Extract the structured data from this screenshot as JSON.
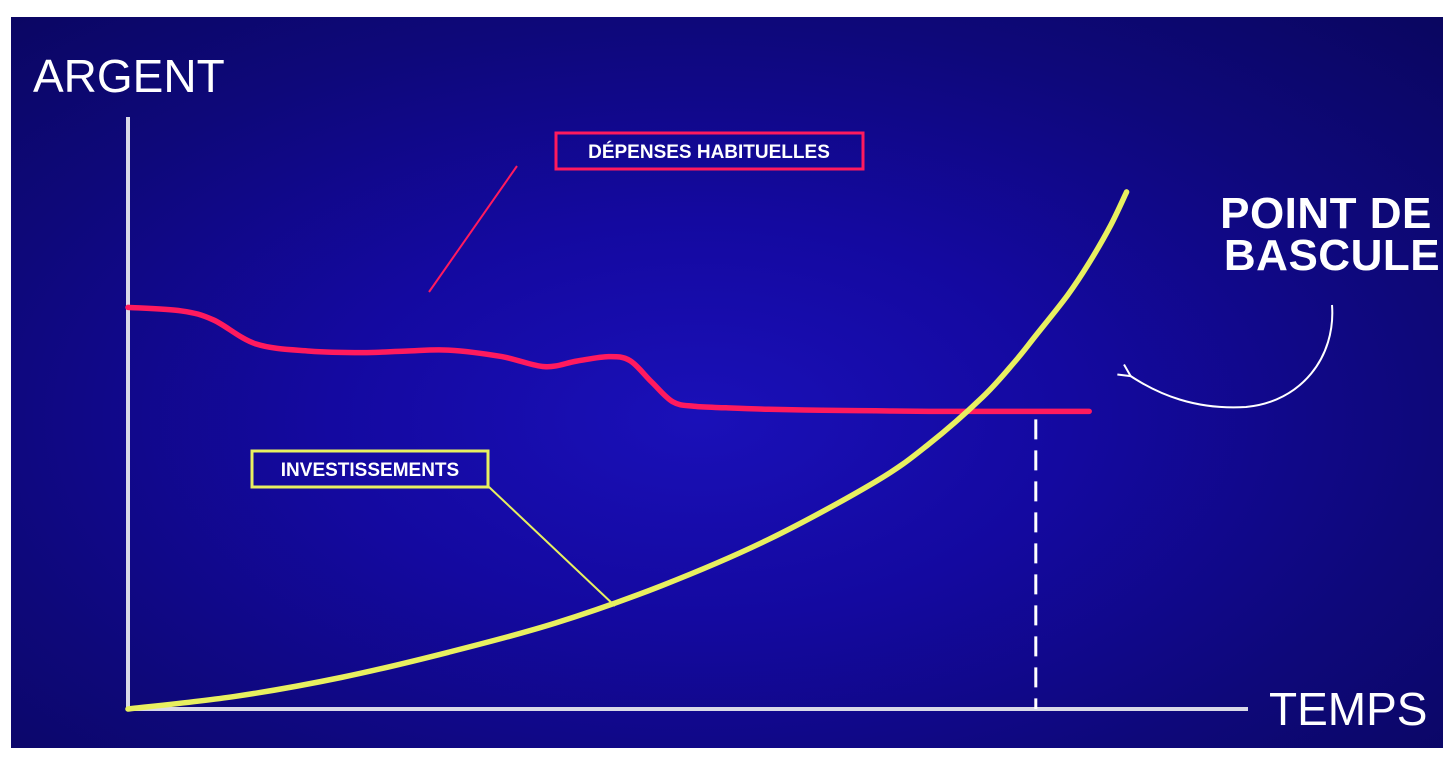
{
  "chart_data": {
    "type": "line",
    "xlabel": "TEMPS",
    "ylabel": "ARGENT",
    "xlim": [
      0,
      100
    ],
    "ylim": [
      0,
      100
    ],
    "series": [
      {
        "name": "DÉPENSES HABITUELLES",
        "color": "#ff1a5e",
        "x": [
          0,
          5,
          8,
          12,
          17,
          22,
          26,
          30,
          35,
          39,
          42,
          45,
          47,
          49,
          51,
          53,
          56,
          60,
          65,
          70,
          75,
          80,
          85,
          90
        ],
        "y": [
          80,
          79.3,
          77.5,
          72.7,
          71.3,
          71,
          71.3,
          71.5,
          70.2,
          68.2,
          69.3,
          70.2,
          69.4,
          65.2,
          61.2,
          60.3,
          60,
          59.7,
          59.5,
          59.4,
          59.3,
          59.3,
          59.3,
          59.3
        ]
      },
      {
        "name": "INVESTISSEMENTS",
        "color": "#e8f060",
        "x": [
          0,
          10,
          20,
          30,
          40,
          50,
          60,
          70,
          75,
          80,
          83,
          85,
          88,
          90,
          92,
          93.5
        ],
        "y": [
          0,
          2.5,
          6.3,
          11.3,
          17.1,
          24.6,
          33.8,
          45.3,
          52.8,
          62.1,
          69.1,
          74.4,
          82.5,
          88.9,
          96.3,
          103
        ]
      }
    ],
    "annotations": [
      {
        "text": "DÉPENSES HABITUELLES",
        "color": "#ff1a5e"
      },
      {
        "text": "INVESTISSEMENTS",
        "color": "#e8f060"
      },
      {
        "text": "POINT DE BASCULE",
        "lines": [
          "POINT DE",
          "BASCULE"
        ]
      }
    ],
    "crossover_x": 85,
    "grid": false
  },
  "colors": {
    "background": "#1409a0",
    "axis": "#d9d9e8",
    "expenses": "#ff1a5e",
    "investments": "#e8f060",
    "callout": "#ffffff"
  }
}
